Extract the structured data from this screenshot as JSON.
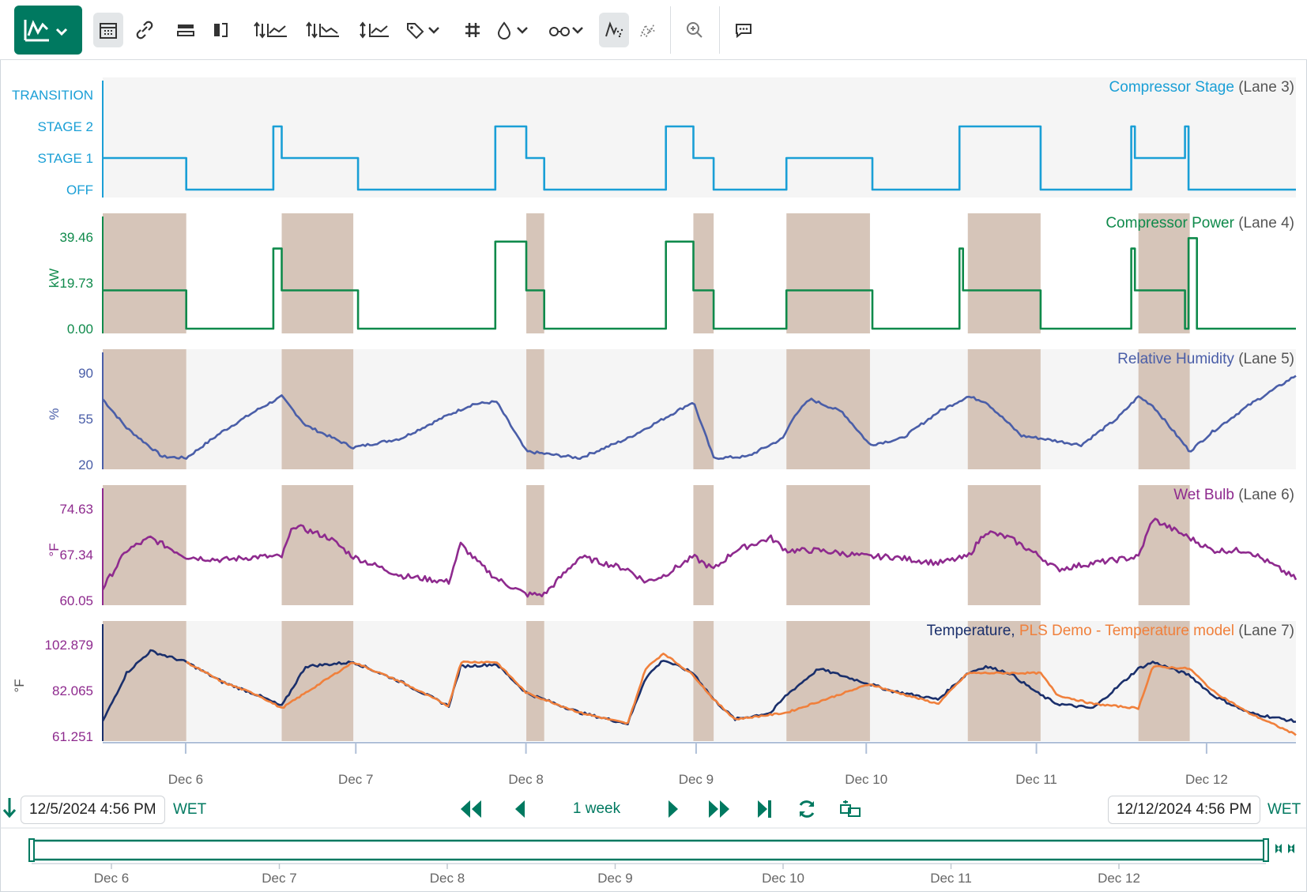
{
  "colors": {
    "accent": "#007960",
    "stage": "#1a9fd6",
    "power": "#0f8a4b",
    "humidity": "#4a5ea8",
    "wetbulb": "#8e2a8e",
    "temp": "#1a2f6b",
    "model": "#f0803c",
    "shade": "#d6c5b9",
    "lanebg": "#f5f5f5"
  },
  "toolbar": {
    "icons": [
      "trend-view-icon",
      "calendar-icon",
      "link-icon",
      "lanes-icon",
      "swap-icon",
      "axis-up-icon",
      "axis-down-icon",
      "axis-updown-icon",
      "tag-icon",
      "grid-icon",
      "drop-icon",
      "glasses-icon",
      "scatter-icon",
      "dotted-icon",
      "zoom-icon",
      "comment-icon"
    ]
  },
  "bottom": {
    "start": "12/5/2024 4:56 PM",
    "start_tz": "WET",
    "end": "12/12/2024 4:56 PM",
    "end_tz": "WET",
    "range": "1 week"
  },
  "chart_data": {
    "type": "line",
    "x_ticks": [
      "Dec 6",
      "Dec 7",
      "Dec 8",
      "Dec 9",
      "Dec 10",
      "Dec 11",
      "Dec 12"
    ],
    "x_range": [
      "12/5/2024 4:56 PM",
      "12/12/2024 4:56 PM"
    ],
    "shaded_intervals": [
      [
        0.0,
        0.07
      ],
      [
        0.15,
        0.21
      ],
      [
        0.355,
        0.37
      ],
      [
        0.495,
        0.512
      ],
      [
        0.573,
        0.643
      ],
      [
        0.725,
        0.786
      ],
      [
        0.868,
        0.911
      ]
    ],
    "lanes": [
      {
        "title": "Compressor Stage",
        "lane": "(Lane 3)",
        "type": "step",
        "y_categories": [
          "OFF",
          "STAGE 1",
          "STAGE 2",
          "TRANSITION"
        ],
        "series": [
          {
            "name": "Compressor Stage",
            "x": [
              0.0,
              0.07,
              0.07,
              0.143,
              0.143,
              0.146,
              0.146,
              0.15,
              0.15,
              0.214,
              0.214,
              0.329,
              0.329,
              0.355,
              0.355,
              0.37,
              0.37,
              0.472,
              0.472,
              0.495,
              0.495,
              0.512,
              0.512,
              0.573,
              0.573,
              0.645,
              0.645,
              0.718,
              0.718,
              0.721,
              0.721,
              0.786,
              0.786,
              0.862,
              0.862,
              0.865,
              0.865,
              0.907,
              0.907,
              0.91,
              0.91,
              1.0
            ],
            "y": [
              1,
              1,
              0,
              0,
              2,
              2,
              2,
              2,
              1,
              1,
              0,
              0,
              2,
              2,
              1,
              1,
              0,
              0,
              2,
              2,
              1,
              1,
              0,
              0,
              1,
              1,
              0,
              0,
              2,
              2,
              2,
              2,
              0,
              0,
              2,
              2,
              1,
              1,
              2,
              2,
              0,
              0
            ]
          }
        ]
      },
      {
        "title": "Compressor Power",
        "lane": "(Lane 4)",
        "ylabel": "kW",
        "y_ticks": [
          "0.00",
          "19.73",
          "39.46"
        ],
        "ylim": [
          0,
          39.46
        ],
        "series": [
          {
            "name": "Compressor Power",
            "x": [
              0.0,
              0.07,
              0.07,
              0.143,
              0.143,
              0.15,
              0.15,
              0.214,
              0.214,
              0.329,
              0.329,
              0.355,
              0.355,
              0.37,
              0.37,
              0.472,
              0.472,
              0.495,
              0.495,
              0.512,
              0.512,
              0.573,
              0.573,
              0.645,
              0.645,
              0.718,
              0.718,
              0.721,
              0.721,
              0.786,
              0.786,
              0.862,
              0.862,
              0.865,
              0.865,
              0.907,
              0.907,
              0.91,
              0.91,
              0.917,
              0.917,
              1.0
            ],
            "y": [
              16.5,
              16.5,
              0,
              0,
              34.5,
              34.5,
              16.5,
              16.5,
              0,
              0,
              37.5,
              37.5,
              16.5,
              16.5,
              0,
              0,
              37.5,
              37.5,
              16.5,
              16.5,
              0,
              0,
              16.5,
              16.5,
              0,
              0,
              34.5,
              34.5,
              16.5,
              16.5,
              0,
              0,
              34.5,
              34.5,
              16.5,
              16.5,
              0,
              0,
              39,
              39,
              0,
              0
            ]
          }
        ]
      },
      {
        "title": "Relative Humidity",
        "lane": "(Lane 5)",
        "ylabel": "%",
        "y_ticks": [
          "20",
          "55",
          "90"
        ],
        "ylim": [
          20,
          90
        ],
        "series": [
          {
            "name": "Relative Humidity",
            "x": [
              0.0,
              0.02,
              0.05,
              0.07,
              0.1,
              0.13,
              0.15,
              0.17,
              0.21,
              0.25,
              0.29,
              0.31,
              0.33,
              0.355,
              0.4,
              0.44,
              0.47,
              0.495,
              0.512,
              0.54,
              0.57,
              0.58,
              0.593,
              0.62,
              0.643,
              0.67,
              0.7,
              0.725,
              0.74,
              0.77,
              0.786,
              0.82,
              0.85,
              0.868,
              0.88,
              0.911,
              0.93,
              0.96,
              1.0
            ],
            "y": [
              70,
              48,
              26,
              25,
              45,
              62,
              72,
              50,
              33,
              40,
              58,
              66,
              68,
              30,
              25,
              40,
              55,
              68,
              25,
              26,
              40,
              58,
              70,
              60,
              35,
              40,
              60,
              72,
              68,
              42,
              40,
              35,
              55,
              72,
              65,
              30,
              45,
              65,
              88
            ]
          }
        ]
      },
      {
        "title": "Wet Bulb",
        "lane": "(Lane 6)",
        "ylabel": "°F",
        "y_ticks": [
          "60.05",
          "67.34",
          "74.63"
        ],
        "ylim": [
          60.05,
          74.63
        ],
        "series": [
          {
            "name": "Wet Bulb",
            "x": [
              0.0,
              0.02,
              0.04,
              0.07,
              0.1,
              0.13,
              0.15,
              0.16,
              0.19,
              0.21,
              0.25,
              0.29,
              0.3,
              0.315,
              0.33,
              0.355,
              0.37,
              0.4,
              0.44,
              0.455,
              0.47,
              0.495,
              0.512,
              0.53,
              0.56,
              0.573,
              0.6,
              0.643,
              0.66,
              0.7,
              0.725,
              0.74,
              0.76,
              0.786,
              0.8,
              0.83,
              0.868,
              0.88,
              0.911,
              0.93,
              0.96,
              1.0
            ],
            "y": [
              62,
              68,
              70,
              67,
              66.5,
              67,
              67,
              72,
              70,
              67,
              64,
              63,
              69,
              66,
              63.5,
              61,
              61,
              67,
              65,
              63,
              64,
              67,
              65,
              68,
              70,
              68,
              68,
              67,
              67,
              66,
              67,
              71,
              70,
              67,
              65,
              66,
              67,
              73,
              70,
              68,
              68,
              63.5
            ]
          }
        ]
      },
      {
        "title": "Temperature,",
        "title2": "PLS Demo - Temperature model",
        "lane": "(Lane 7)",
        "ylabel": "°F",
        "y_ticks": [
          "61.251",
          "82.065",
          "102.879"
        ],
        "ylim": [
          61.251,
          102.879
        ],
        "series": [
          {
            "name": "Temperature",
            "x": [
              0.0,
              0.02,
              0.04,
              0.07,
              0.1,
              0.13,
              0.15,
              0.17,
              0.21,
              0.25,
              0.29,
              0.3,
              0.33,
              0.355,
              0.37,
              0.4,
              0.44,
              0.455,
              0.47,
              0.495,
              0.512,
              0.53,
              0.56,
              0.573,
              0.6,
              0.643,
              0.66,
              0.7,
              0.725,
              0.74,
              0.76,
              0.786,
              0.8,
              0.83,
              0.868,
              0.88,
              0.911,
              0.93,
              0.96,
              1.0
            ],
            "y": [
              68,
              90,
              100,
              95,
              86,
              80,
              75,
              93,
              95,
              86,
              75,
              93,
              94,
              81,
              78,
              72,
              67,
              88,
              96,
              90,
              78,
              69,
              72,
              80,
              92,
              85,
              82,
              78,
              90,
              93,
              90,
              80,
              76,
              74,
              92,
              95,
              89,
              80,
              72,
              68
            ]
          },
          {
            "name": "PLS Demo - Temperature model",
            "x": [
              0.07,
              0.1,
              0.13,
              0.15,
              0.21,
              0.25,
              0.29,
              0.3,
              0.33,
              0.355,
              0.37,
              0.4,
              0.44,
              0.455,
              0.47,
              0.495,
              0.512,
              0.53,
              0.573,
              0.643,
              0.66,
              0.7,
              0.725,
              0.786,
              0.8,
              0.83,
              0.868,
              0.88,
              0.911,
              0.93,
              0.96,
              1.0
            ],
            "y": [
              95,
              86,
              80,
              74,
              95,
              86,
              75,
              95,
              95,
              81,
              78,
              72,
              67,
              92,
              99,
              89,
              78,
              69,
              72,
              85,
              82,
              76,
              90,
              90,
              80,
              76,
              74,
              93,
              92,
              82,
              72,
              62
            ]
          }
        ]
      }
    ]
  }
}
